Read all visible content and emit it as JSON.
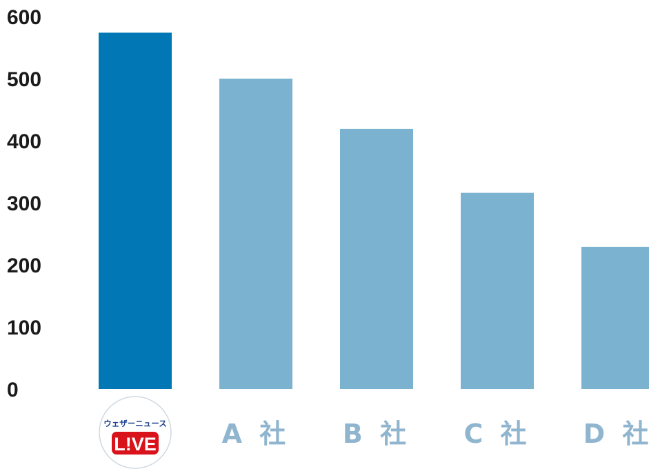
{
  "chart_data": {
    "type": "bar",
    "categories": [
      "ウェザーニュース LIVE",
      "A 社",
      "B 社",
      "C 社",
      "D 社"
    ],
    "values": [
      574,
      500,
      419,
      316,
      229
    ],
    "ylim": [
      0,
      600
    ],
    "yticks": [
      0,
      100,
      200,
      300,
      400,
      500,
      600
    ],
    "grid": false,
    "colors": {
      "highlight": "#0178b5",
      "default": "#7ab2d0"
    },
    "highlight_index": 0
  },
  "logo": {
    "top_text": "ウェザーニュース",
    "live_text": "L!VE",
    "icon": "weathernews-live-logo"
  }
}
